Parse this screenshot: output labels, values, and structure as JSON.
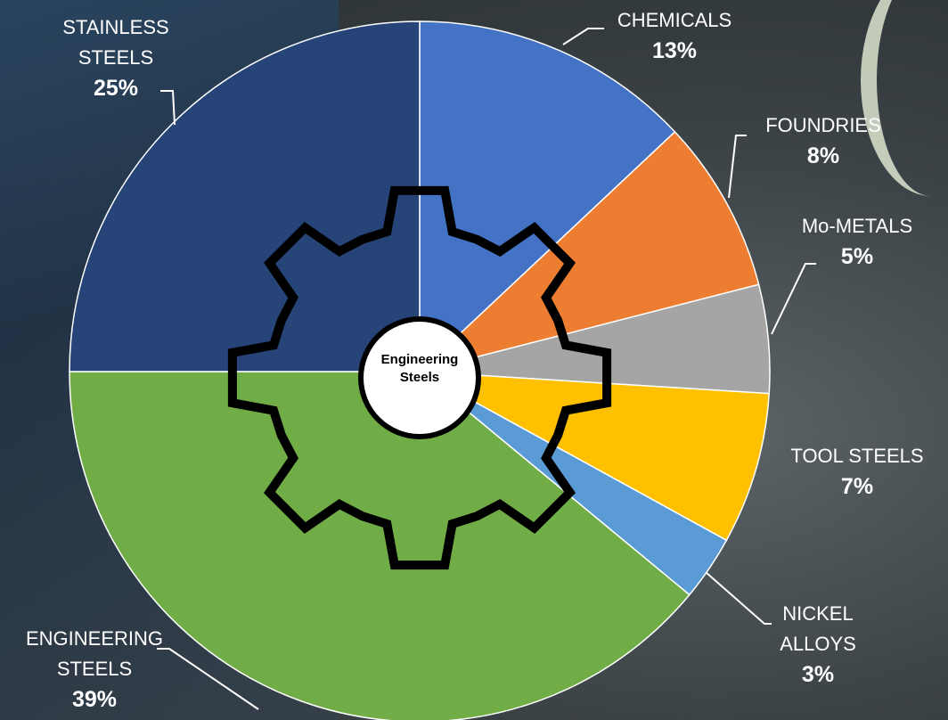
{
  "chart_data": {
    "type": "pie",
    "categories": [
      "CHEMICALS",
      "FOUNDRIES",
      "Mo-METALS",
      "TOOL STEELS",
      "NICKEL ALLOYS",
      "ENGINEERING STEELS",
      "STAINLESS STEELS"
    ],
    "values": [
      13,
      8,
      5,
      7,
      3,
      39,
      25
    ],
    "value_labels": [
      "13%",
      "8%",
      "5%",
      "7%",
      "3%",
      "39%",
      "25%"
    ],
    "colors": [
      "#4472c4",
      "#ed7d31",
      "#a5a5a5",
      "#ffc000",
      "#5b9bd5",
      "#70ad47",
      "#264478"
    ],
    "center_label": "Engineering Steels"
  }
}
